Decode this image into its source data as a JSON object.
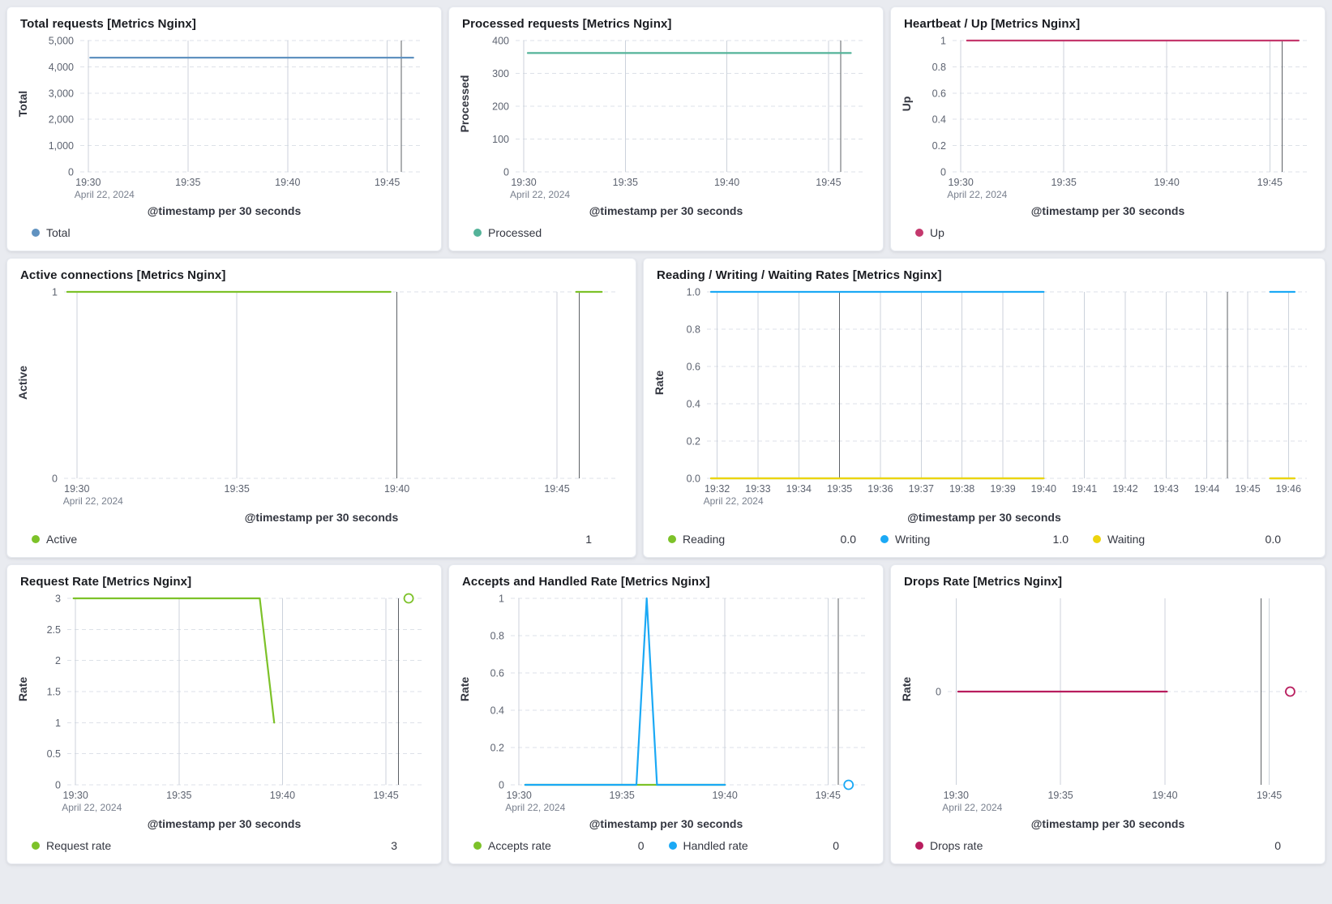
{
  "page": {
    "background": "#e9ebf0",
    "panel_background": "#ffffff"
  },
  "date_label": "April 22, 2024",
  "time_axis_note": "x values in series/ticks are minutes after 19:00 on April 22, 2024",
  "chart_data": [
    {
      "type": "line",
      "title": "Total requests [Metrics Nginx]",
      "ylabel": "Total",
      "xlabel": "@timestamp per 30 seconds",
      "ylim": [
        0,
        5000
      ],
      "xdomain": [
        29.6,
        46.8
      ],
      "ml": 58,
      "yticks": [
        {
          "v": 0,
          "label": "0"
        },
        {
          "v": 1000,
          "label": "1,000"
        },
        {
          "v": 2000,
          "label": "2,000"
        },
        {
          "v": 3000,
          "label": "3,000"
        },
        {
          "v": 4000,
          "label": "4,000"
        },
        {
          "v": 5000,
          "label": "5,000"
        }
      ],
      "xticks": [
        {
          "t": 30,
          "label": "19:30",
          "sub": "April 22, 2024"
        },
        {
          "t": 35,
          "label": "19:35"
        },
        {
          "t": 40,
          "label": "19:40"
        },
        {
          "t": 45,
          "label": "19:45"
        }
      ],
      "dark_lines": [
        45.7
      ],
      "series": [
        {
          "name": "Total",
          "color": "#6092c0",
          "points": [
            [
              30.1,
              4350
            ],
            [
              46.3,
              4350
            ]
          ]
        }
      ],
      "markers": [],
      "legend": [
        {
          "label": "Total",
          "color": "#6092c0"
        }
      ]
    },
    {
      "type": "line",
      "title": "Processed requests [Metrics Nginx]",
      "ylabel": "Processed",
      "xlabel": "@timestamp per 30 seconds",
      "ylim": [
        0,
        400
      ],
      "xdomain": [
        29.6,
        46.8
      ],
      "ml": 50,
      "yticks": [
        {
          "v": 0,
          "label": "0"
        },
        {
          "v": 100,
          "label": "100"
        },
        {
          "v": 200,
          "label": "200"
        },
        {
          "v": 300,
          "label": "300"
        },
        {
          "v": 400,
          "label": "400"
        }
      ],
      "xticks": [
        {
          "t": 30,
          "label": "19:30",
          "sub": "April 22, 2024"
        },
        {
          "t": 35,
          "label": "19:35"
        },
        {
          "t": 40,
          "label": "19:40"
        },
        {
          "t": 45,
          "label": "19:45"
        }
      ],
      "dark_lines": [
        45.6
      ],
      "series": [
        {
          "name": "Processed",
          "color": "#54b399",
          "points": [
            [
              30.2,
              362
            ],
            [
              46.1,
              362
            ]
          ]
        }
      ],
      "markers": [],
      "legend": [
        {
          "label": "Processed",
          "color": "#54b399"
        }
      ]
    },
    {
      "type": "line",
      "title": "Heartbeat / Up [Metrics Nginx]",
      "ylabel": "Up",
      "xlabel": "@timestamp per 30 seconds",
      "ylim": [
        0,
        1
      ],
      "xdomain": [
        29.6,
        46.8
      ],
      "ml": 44,
      "yticks": [
        {
          "v": 0,
          "label": "0"
        },
        {
          "v": 0.2,
          "label": "0.2"
        },
        {
          "v": 0.4,
          "label": "0.4"
        },
        {
          "v": 0.6,
          "label": "0.6"
        },
        {
          "v": 0.8,
          "label": "0.8"
        },
        {
          "v": 1,
          "label": "1"
        }
      ],
      "xticks": [
        {
          "t": 30,
          "label": "19:30",
          "sub": "April 22, 2024"
        },
        {
          "t": 35,
          "label": "19:35"
        },
        {
          "t": 40,
          "label": "19:40"
        },
        {
          "t": 45,
          "label": "19:45"
        }
      ],
      "dark_lines": [
        45.6
      ],
      "series": [
        {
          "name": "Up",
          "color": "#c4386d",
          "points": [
            [
              30.3,
              1
            ],
            [
              46.4,
              1
            ]
          ]
        }
      ],
      "markers": [],
      "legend": [
        {
          "label": "Up",
          "color": "#c4386d"
        }
      ]
    },
    {
      "type": "line",
      "title": "Active connections [Metrics Nginx]",
      "ylabel": "Active",
      "xlabel": "@timestamp per 30 seconds",
      "ylim": [
        0,
        1
      ],
      "xdomain": [
        29.6,
        46.9
      ],
      "ml": 38,
      "yticks": [
        {
          "v": 0,
          "label": "0"
        },
        {
          "v": 1,
          "label": "1"
        }
      ],
      "xticks": [
        {
          "t": 30,
          "label": "19:30",
          "sub": "April 22, 2024"
        },
        {
          "t": 35,
          "label": "19:35"
        },
        {
          "t": 40,
          "label": "19:40"
        },
        {
          "t": 45,
          "label": "19:45"
        }
      ],
      "dark_lines": [
        40,
        45.7
      ],
      "series": [
        {
          "name": "Active",
          "color": "#7dc229",
          "segments": [
            [
              [
                29.7,
                1
              ],
              [
                39.8,
                1
              ]
            ],
            [
              [
                45.6,
                1
              ],
              [
                46.4,
                1
              ]
            ]
          ]
        }
      ],
      "markers": [],
      "legend": [
        {
          "label": "Active",
          "color": "#7dc229",
          "value": "1"
        }
      ]
    },
    {
      "type": "line",
      "title": "Reading / Writing / Waiting Rates [Metrics Nginx]",
      "ylabel": "Rate",
      "xlabel": "@timestamp per 30 seconds",
      "ylim": [
        0,
        1
      ],
      "xdomain": [
        31.75,
        46.45
      ],
      "ml": 46,
      "yticks": [
        {
          "v": 0,
          "label": "0.0"
        },
        {
          "v": 0.2,
          "label": "0.2"
        },
        {
          "v": 0.4,
          "label": "0.4"
        },
        {
          "v": 0.6,
          "label": "0.6"
        },
        {
          "v": 0.8,
          "label": "0.8"
        },
        {
          "v": 1,
          "label": "1.0"
        }
      ],
      "xticks": [
        {
          "t": 32,
          "label": "19:32",
          "sub": "April 22, 2024"
        },
        {
          "t": 33,
          "label": "19:33"
        },
        {
          "t": 34,
          "label": "19:34"
        },
        {
          "t": 35,
          "label": "19:35"
        },
        {
          "t": 36,
          "label": "19:36"
        },
        {
          "t": 37,
          "label": "19:37"
        },
        {
          "t": 38,
          "label": "19:38"
        },
        {
          "t": 39,
          "label": "19:39"
        },
        {
          "t": 40,
          "label": "19:40"
        },
        {
          "t": 41,
          "label": "19:41"
        },
        {
          "t": 42,
          "label": "19:42"
        },
        {
          "t": 43,
          "label": "19:43"
        },
        {
          "t": 44,
          "label": "19:44"
        },
        {
          "t": 45,
          "label": "19:45"
        },
        {
          "t": 46,
          "label": "19:46"
        }
      ],
      "dark_lines": [
        35,
        44.5
      ],
      "series": [
        {
          "name": "Reading",
          "color": "#7dc229",
          "segments": [
            [
              [
                31.85,
                0
              ],
              [
                40.0,
                0
              ]
            ],
            [
              [
                45.55,
                0
              ],
              [
                46.15,
                0
              ]
            ]
          ]
        },
        {
          "name": "Writing",
          "color": "#1ba9f5",
          "segments": [
            [
              [
                31.85,
                1
              ],
              [
                40.0,
                1
              ]
            ],
            [
              [
                45.55,
                1
              ],
              [
                46.15,
                1
              ]
            ]
          ]
        },
        {
          "name": "Waiting",
          "color": "#edd40e",
          "segments": [
            [
              [
                31.85,
                0
              ],
              [
                40.0,
                0
              ]
            ],
            [
              [
                45.55,
                0
              ],
              [
                46.15,
                0
              ]
            ]
          ]
        }
      ],
      "markers": [],
      "legend": [
        {
          "label": "Reading",
          "color": "#7dc229",
          "value": "0.0"
        },
        {
          "label": "Writing",
          "color": "#1ba9f5",
          "value": "1.0"
        },
        {
          "label": "Waiting",
          "color": "#edd40e",
          "value": "0.0"
        }
      ]
    },
    {
      "type": "line",
      "title": "Request Rate [Metrics Nginx]",
      "ylabel": "Rate",
      "xlabel": "@timestamp per 30 seconds",
      "ylim": [
        0,
        3
      ],
      "xdomain": [
        29.6,
        46.8
      ],
      "ml": 42,
      "yticks": [
        {
          "v": 0,
          "label": "0"
        },
        {
          "v": 0.5,
          "label": "0.5"
        },
        {
          "v": 1,
          "label": "1"
        },
        {
          "v": 1.5,
          "label": "1.5"
        },
        {
          "v": 2,
          "label": "2"
        },
        {
          "v": 2.5,
          "label": "2.5"
        },
        {
          "v": 3,
          "label": "3"
        }
      ],
      "xticks": [
        {
          "t": 30,
          "label": "19:30",
          "sub": "April 22, 2024"
        },
        {
          "t": 35,
          "label": "19:35"
        },
        {
          "t": 40,
          "label": "19:40"
        },
        {
          "t": 45,
          "label": "19:45"
        }
      ],
      "dark_lines": [
        45.6
      ],
      "series": [
        {
          "name": "Request rate",
          "color": "#7dc229",
          "points": [
            [
              29.9,
              3
            ],
            [
              38.9,
              3
            ],
            [
              39.6,
              1
            ]
          ]
        }
      ],
      "markers": [
        {
          "t": 46.1,
          "v": 3,
          "color": "#7dc229"
        }
      ],
      "legend": [
        {
          "label": "Request rate",
          "color": "#7dc229",
          "value": "3"
        }
      ]
    },
    {
      "type": "line",
      "title": "Accepts and Handled Rate [Metrics Nginx]",
      "ylabel": "Rate",
      "xlabel": "@timestamp per 30 seconds",
      "ylim": [
        0,
        1
      ],
      "xdomain": [
        29.6,
        46.8
      ],
      "ml": 44,
      "yticks": [
        {
          "v": 0,
          "label": "0"
        },
        {
          "v": 0.2,
          "label": "0.2"
        },
        {
          "v": 0.4,
          "label": "0.4"
        },
        {
          "v": 0.6,
          "label": "0.6"
        },
        {
          "v": 0.8,
          "label": "0.8"
        },
        {
          "v": 1,
          "label": "1"
        }
      ],
      "xticks": [
        {
          "t": 30,
          "label": "19:30",
          "sub": "April 22, 2024"
        },
        {
          "t": 35,
          "label": "19:35"
        },
        {
          "t": 40,
          "label": "19:40"
        },
        {
          "t": 45,
          "label": "19:45"
        }
      ],
      "dark_lines": [
        45.5
      ],
      "series": [
        {
          "name": "Accepts rate",
          "color": "#7dc229",
          "points": [
            [
              30.3,
              0
            ],
            [
              40.0,
              0
            ]
          ]
        },
        {
          "name": "Handled rate",
          "color": "#1ba9f5",
          "points": [
            [
              30.3,
              0
            ],
            [
              35.7,
              0
            ],
            [
              36.2,
              1
            ],
            [
              36.7,
              0
            ],
            [
              40.0,
              0
            ]
          ]
        }
      ],
      "markers": [
        {
          "t": 46.0,
          "v": 0,
          "color": "#1ba9f5"
        }
      ],
      "legend": [
        {
          "label": "Accepts rate",
          "color": "#7dc229",
          "value": "0"
        },
        {
          "label": "Handled rate",
          "color": "#1ba9f5",
          "value": "0"
        }
      ]
    },
    {
      "type": "line",
      "title": "Drops Rate [Metrics Nginx]",
      "ylabel": "Rate",
      "xlabel": "@timestamp per 30 seconds",
      "ylim": [
        -1,
        1
      ],
      "xdomain": [
        29.6,
        46.8
      ],
      "ml": 38,
      "yticks": [
        {
          "v": 0,
          "label": "0"
        }
      ],
      "xticks": [
        {
          "t": 30,
          "label": "19:30",
          "sub": "April 22, 2024"
        },
        {
          "t": 35,
          "label": "19:35"
        },
        {
          "t": 40,
          "label": "19:40"
        },
        {
          "t": 45,
          "label": "19:45"
        }
      ],
      "dark_lines": [
        44.6
      ],
      "series": [
        {
          "name": "Drops rate",
          "color": "#b81d5e",
          "points": [
            [
              30.1,
              0
            ],
            [
              40.1,
              0
            ]
          ]
        }
      ],
      "markers": [
        {
          "t": 46.0,
          "v": 0,
          "color": "#b81d5e"
        }
      ],
      "legend": [
        {
          "label": "Drops rate",
          "color": "#b81d5e",
          "value": "0"
        }
      ]
    }
  ]
}
